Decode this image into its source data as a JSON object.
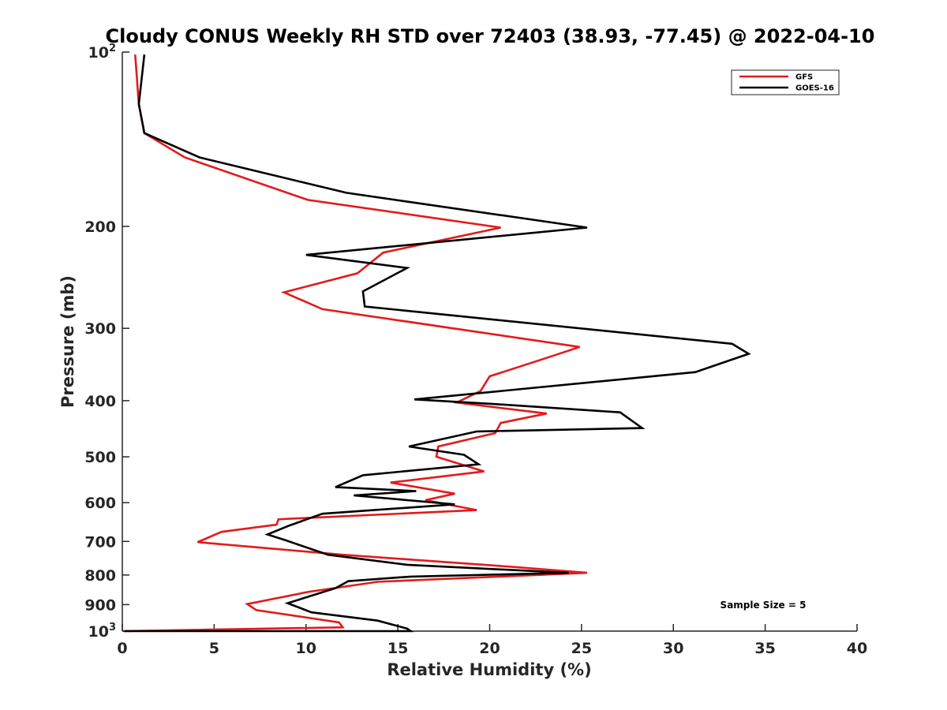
{
  "chart_data": {
    "type": "line",
    "title": "Cloudy CONUS Weekly RH STD over 72403 (38.93, -77.45) @ 2022-04-10",
    "xlabel": "Relative Humidity (%)",
    "ylabel": "Pressure (mb)",
    "xlim": [
      0,
      40
    ],
    "ylim": [
      100,
      1000
    ],
    "yscale": "log",
    "y_reversed": true,
    "grid": false,
    "legend_position": "top-right",
    "x_ticks": [
      "0",
      "5",
      "10",
      "15",
      "20",
      "25",
      "30",
      "35",
      "40"
    ],
    "x_tick_values": [
      0,
      5,
      10,
      15,
      20,
      25,
      30,
      35,
      40
    ],
    "y_ticks": [
      {
        "value": 100,
        "base": "10",
        "exp": "2"
      },
      {
        "value": 200,
        "label": "200"
      },
      {
        "value": 300,
        "label": "300"
      },
      {
        "value": 400,
        "label": "400"
      },
      {
        "value": 500,
        "label": "500"
      },
      {
        "value": 600,
        "label": "600"
      },
      {
        "value": 700,
        "label": "700"
      },
      {
        "value": 800,
        "label": "800"
      },
      {
        "value": 900,
        "label": "900"
      },
      {
        "value": 1000,
        "base": "10",
        "exp": "3"
      }
    ],
    "annotation": "Sample Size = 5",
    "series": [
      {
        "name": "GFS",
        "color": "#e31a1c",
        "x": [
          0.7,
          0.9,
          1.2,
          3.4,
          10.1,
          20.6,
          14.2,
          12.8,
          8.8,
          10.9,
          24.9,
          22.9,
          20.0,
          19.5,
          18.2,
          23.1,
          20.6,
          20.3,
          17.2,
          17.1,
          19.7,
          14.6,
          18.1,
          16.5,
          19.3,
          8.5,
          8.4,
          5.4,
          4.1,
          12.0,
          21.1,
          25.3,
          13.9,
          10.1,
          6.8,
          7.3,
          9.8,
          11.8,
          12.0,
          0.1
        ],
        "y": [
          101,
          123,
          138,
          152,
          180,
          201,
          222,
          241,
          260,
          278,
          323,
          339,
          363,
          385,
          403,
          421,
          437,
          455,
          480,
          500,
          530,
          554,
          579,
          594,
          618,
          641,
          655,
          674,
          702,
          738,
          774,
          793,
          822,
          856,
          898,
          920,
          945,
          966,
          985,
          1000
        ]
      },
      {
        "name": "GOES-16",
        "color": "#000000",
        "x": [
          1.2,
          0.9,
          1.2,
          4.2,
          12.2,
          25.3,
          10.0,
          15.5,
          13.1,
          13.2,
          33.2,
          34.1,
          31.2,
          15.9,
          20.1,
          27.1,
          28.3,
          19.3,
          15.6,
          18.6,
          19.4,
          13.1,
          11.6,
          16.0,
          12.6,
          18.1,
          10.9,
          9.1,
          7.9,
          8.9,
          11.2,
          15.5,
          24.3,
          15.7,
          12.3,
          11.6,
          9.0,
          10.3,
          13.9,
          15.5,
          15.7,
          0.1
        ],
        "y": [
          101,
          123,
          138,
          152,
          175,
          201,
          224,
          236,
          259,
          275,
          319,
          332,
          357,
          398,
          405,
          419,
          446,
          452,
          480,
          496,
          515,
          538,
          564,
          573,
          583,
          604,
          627,
          657,
          681,
          697,
          738,
          768,
          793,
          805,
          820,
          843,
          895,
          928,
          959,
          990,
          1000,
          1000
        ]
      }
    ]
  }
}
